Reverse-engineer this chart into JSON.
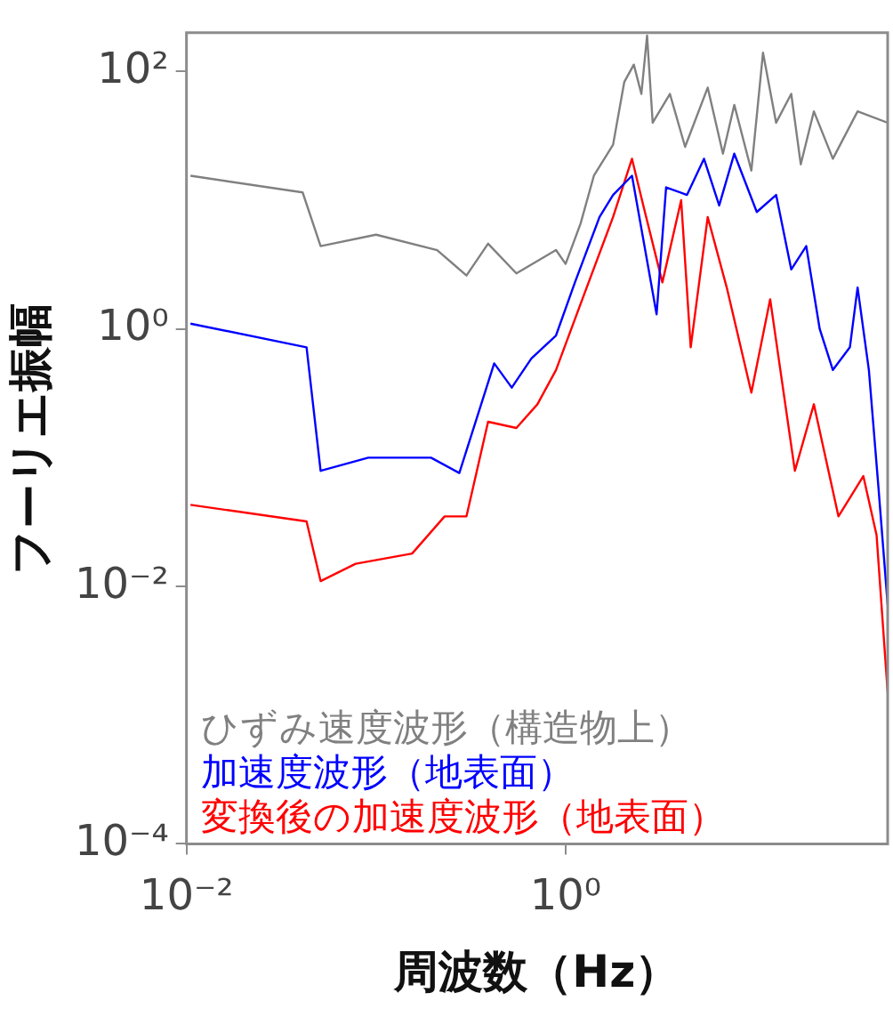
{
  "chart_data": {
    "type": "line",
    "xlabel": "周波数（Hz）",
    "ylabel": "フーリエ振幅",
    "log": "xy",
    "grid": false,
    "legend": "bottom left",
    "xlim": [
      0.01,
      50
    ],
    "ylim": [
      0.0001,
      200
    ],
    "xticks": [
      {
        "value": 0.01,
        "label": "10⁻²"
      },
      {
        "value": 1,
        "label": "10⁰"
      }
    ],
    "yticks": [
      {
        "value": 0.0001,
        "label": "10⁻⁴"
      },
      {
        "value": 0.01,
        "label": "10⁻²"
      },
      {
        "value": 1,
        "label": "10⁰"
      },
      {
        "value": 100,
        "label": "10²"
      }
    ],
    "series": [
      {
        "name": "ひずみ速度波形（構造物上）",
        "color": "#808080",
        "x": [
          0.0105,
          0.041,
          0.051,
          0.1,
          0.21,
          0.3,
          0.39,
          0.55,
          0.89,
          1.0,
          1.2,
          1.41,
          1.78,
          2.04,
          2.29,
          2.51,
          2.69,
          2.88,
          3.55,
          4.27,
          5.62,
          6.76,
          7.76,
          9.55,
          11.0,
          12.9,
          15.5,
          17.4,
          20.4,
          25.7,
          34.7,
          50
        ],
        "values": [
          15.5,
          11.5,
          4.4,
          5.4,
          4.1,
          2.6,
          4.6,
          2.7,
          4.1,
          3.2,
          6.6,
          15.5,
          27,
          83,
          113,
          67,
          190,
          40,
          67,
          26,
          75,
          23,
          55,
          17,
          140,
          40,
          67,
          19,
          49,
          21,
          49,
          40
        ]
      },
      {
        "name": "加速度波形（地表面）",
        "color": "#0000ff",
        "x": [
          0.0105,
          0.043,
          0.051,
          0.091,
          0.195,
          0.275,
          0.42,
          0.52,
          0.66,
          0.89,
          1.12,
          1.51,
          1.78,
          2.24,
          3.02,
          3.39,
          4.37,
          5.37,
          6.46,
          7.76,
          10.2,
          12.9,
          15.5,
          18.6,
          21.9,
          25.7,
          31.6,
          34.7,
          39.8,
          44.7,
          50
        ],
        "values": [
          1.1,
          0.72,
          0.079,
          0.1,
          0.1,
          0.076,
          0.54,
          0.35,
          0.59,
          0.89,
          2.3,
          7.4,
          11,
          15.5,
          1.3,
          12.6,
          11,
          21,
          9.1,
          23,
          8.1,
          11,
          2.9,
          4.4,
          1.0,
          0.48,
          0.72,
          2.1,
          0.48,
          0.059,
          0.0072
        ]
      },
      {
        "name": "変換後の加速度波形（地表面）",
        "color": "#ff0000",
        "x": [
          0.0105,
          0.043,
          0.051,
          0.078,
          0.155,
          0.23,
          0.3,
          0.39,
          0.55,
          0.71,
          0.89,
          1.26,
          1.78,
          2.24,
          2.57,
          3.24,
          4.07,
          4.57,
          5.62,
          7.08,
          9.55,
          12.0,
          16.2,
          20.4,
          27.5,
          37.2,
          43.7,
          50
        ],
        "values": [
          0.043,
          0.032,
          0.011,
          0.015,
          0.018,
          0.035,
          0.035,
          0.19,
          0.17,
          0.26,
          0.48,
          1.9,
          7.4,
          21,
          9.1,
          2.3,
          10,
          0.72,
          7.4,
          2.1,
          0.32,
          1.7,
          0.079,
          0.26,
          0.035,
          0.072,
          0.025,
          0.0015
        ]
      }
    ]
  }
}
